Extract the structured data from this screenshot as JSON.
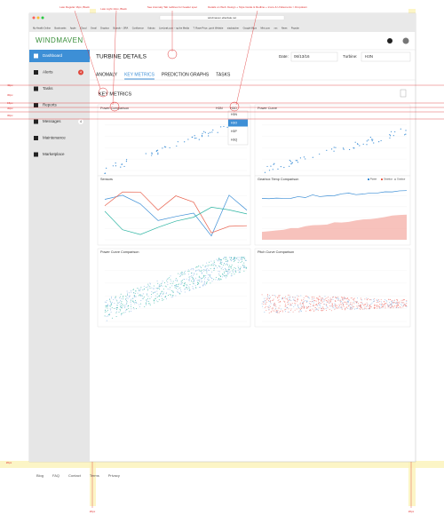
{
  "annotations": {
    "top": [
      "Lato Regular 16px, Black",
      "Lato Light 14px, Black",
      "See Anomaly Tab redlines for header spec",
      "Details on Web: Design + Style Guide & Redline + Icons & UI Elements > Dropdown"
    ],
    "left": [
      "40px",
      "30px",
      "15px",
      "30px",
      "30px"
    ],
    "bottom": [
      "20px",
      "20px",
      "20px"
    ]
  },
  "browser": {
    "url": "windmaven.ellerdale.net",
    "bookmarks": [
      "My Health Online",
      "Bookmarks",
      "Apple",
      "iCloud",
      "Gmail",
      "Dropbox",
      "Boards – JIRA",
      "Confluence",
      "Kabuto",
      "LiveLeak.com – ng the Media",
      "T. Rowe Price...jpmh Website",
      "stackatcher",
      "Google Maps",
      "Mint.com",
      "xxx",
      "News",
      "Popular"
    ]
  },
  "app": {
    "logo": "WINDMAVEN",
    "nav": [
      {
        "label": "Dashboard"
      },
      {
        "label": "Alerts",
        "badge": "4"
      },
      {
        "label": "Tasks"
      },
      {
        "label": "Reports"
      },
      {
        "label": "Messages",
        "badge": "4"
      },
      {
        "label": "Maintenance"
      },
      {
        "label": "Marketplace"
      }
    ],
    "page_title": "TURBINE DETAILS",
    "date_label": "Date:",
    "date": "06/13/16",
    "turbine_label": "Turbine:",
    "turbine": "H3N",
    "tabs": [
      "ANOMALY",
      "KEY METRICS",
      "PREDICTION GRAPHS",
      "TASKS"
    ],
    "section_title": "KEY METRICS",
    "panels": [
      {
        "title": "Power Comparison",
        "selectors": [
          "H3N",
          "H3O"
        ],
        "options": [
          "H3N",
          "H3O",
          "H3P",
          "H3Q"
        ]
      },
      {
        "title": "Power Curve"
      },
      {
        "title": "Sensors"
      },
      {
        "title": "Gearbox Temp Comparison",
        "legend": [
          "Power",
          "Gearbox",
          "Outdoor"
        ]
      },
      {
        "title": "Power Curve Comparison"
      },
      {
        "title": "Pitch Curve Comparison"
      }
    ],
    "footer": [
      "Blog",
      "FAQ",
      "Contact",
      "Terms",
      "Privacy"
    ]
  }
}
